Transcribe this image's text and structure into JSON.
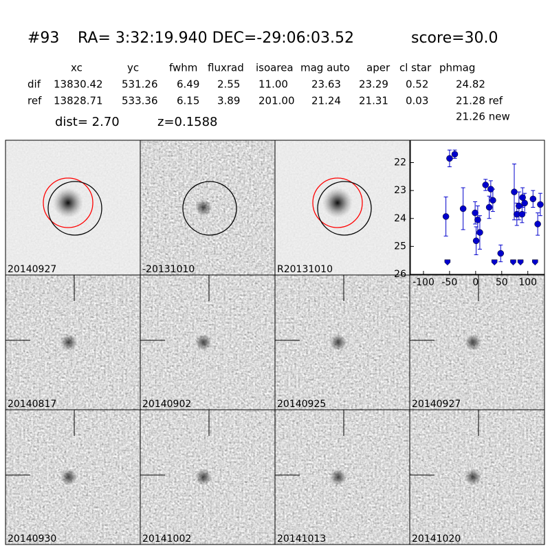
{
  "header": {
    "id": "#93",
    "coords": "RA= 3:32:19.940 DEC=-29:06:03.52",
    "score": "score=30.0"
  },
  "table": {
    "columns": [
      "xc",
      "yc",
      "fwhm",
      "fluxrad",
      "isoarea",
      "mag auto",
      "aper",
      "cl star",
      "phmag"
    ],
    "rows": [
      [
        "dif",
        "13830.42",
        "531.26",
        "6.49",
        "2.55",
        "11.00",
        "23.63",
        "23.29",
        "0.52",
        "24.82"
      ],
      [
        "ref",
        "13828.71",
        "533.36",
        "6.15",
        "3.89",
        "201.00",
        "21.24",
        "21.31",
        "0.03",
        "21.28 ref"
      ]
    ],
    "extra": "21.26 new"
  },
  "dist": "dist=  2.70",
  "redshift": "z=0.1588",
  "panels": [
    {
      "label": "20140927"
    },
    {
      "label": "-20131010"
    },
    {
      "label": "R20131010"
    },
    {
      "label": "20140817"
    },
    {
      "label": "20140902"
    },
    {
      "label": "20140925"
    },
    {
      "label": "20140927",
      "color": "#ff0000"
    },
    {
      "label": "20140930"
    },
    {
      "label": "20141002"
    },
    {
      "label": "20141013"
    },
    {
      "label": "20141020"
    }
  ],
  "chart_data": {
    "type": "scatter",
    "xlim": [
      -125,
      132
    ],
    "ylim": [
      26,
      21.2
    ],
    "xticks": [
      -100,
      -50,
      0,
      50,
      100
    ],
    "yticks": [
      22,
      23,
      24,
      25,
      26
    ],
    "series": [
      {
        "color": "#0000cc",
        "marker": "circle",
        "x": [
          -57,
          -50,
          -40,
          -24,
          -1,
          1,
          4,
          8,
          19,
          26,
          29,
          33,
          48,
          74,
          79,
          83,
          89,
          90,
          94,
          110,
          119,
          124
        ],
        "values": [
          23.93,
          21.85,
          21.7,
          23.65,
          23.8,
          24.8,
          24.05,
          24.5,
          22.8,
          23.6,
          22.95,
          23.35,
          25.25,
          23.05,
          23.85,
          23.55,
          23.85,
          23.25,
          23.45,
          23.3,
          24.2,
          23.5
        ],
        "errors": [
          0.7,
          0.3,
          0.15,
          0.75,
          0.4,
          0.5,
          0.5,
          0.6,
          0.2,
          0.4,
          0.3,
          0.4,
          0.3,
          1.0,
          0.4,
          0.5,
          0.3,
          0.35,
          0.35,
          0.3,
          0.4,
          0.4
        ]
      },
      {
        "color": "#0000cc",
        "marker": "limit",
        "x": [
          -54,
          36,
          72,
          86,
          114
        ],
        "values": [
          25.55,
          25.55,
          25.55,
          25.55,
          25.55
        ]
      }
    ]
  }
}
